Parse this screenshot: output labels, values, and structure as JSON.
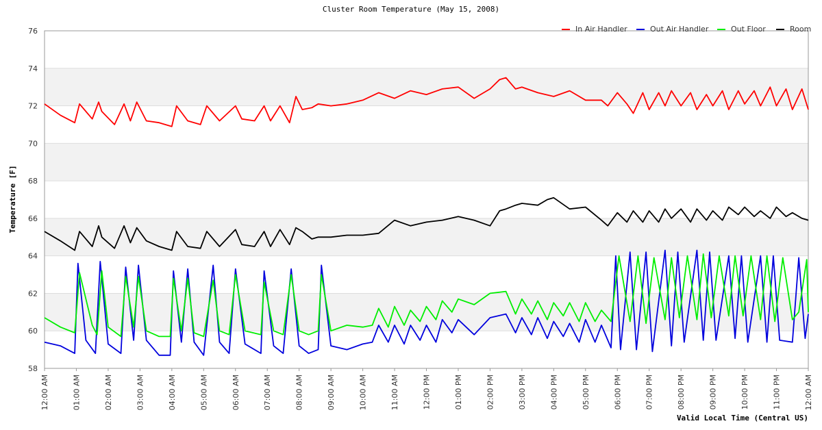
{
  "chart_data": {
    "type": "line",
    "title": "Cluster Room Temperature (May 15, 2008)",
    "xlabel": "Valid Local Time (Central US)",
    "ylabel": "Temperature [F]",
    "ylim": [
      58,
      76
    ],
    "yticks": [
      "58",
      "60",
      "62",
      "64",
      "66",
      "68",
      "70",
      "72",
      "74",
      "76"
    ],
    "xlim": [
      0,
      24
    ],
    "xticks": [
      "12:00 AM",
      "01:00 AM",
      "02:00 AM",
      "03:00 AM",
      "04:00 AM",
      "05:00 AM",
      "06:00 AM",
      "07:00 AM",
      "08:00 AM",
      "09:00 AM",
      "10:00 AM",
      "11:00 AM",
      "12:00 PM",
      "01:00 PM",
      "02:00 PM",
      "03:00 PM",
      "04:00 PM",
      "05:00 PM",
      "06:00 PM",
      "07:00 PM",
      "08:00 PM",
      "09:00 PM",
      "10:00 PM",
      "11:00 PM",
      "12:00 AM"
    ],
    "grid": "alternating horizontal bands",
    "legend_position": "top-right",
    "series": [
      {
        "name": "In Air Handler",
        "color": "#ff0000",
        "x": [
          0,
          0.5,
          0.95,
          1.1,
          1.5,
          1.7,
          1.8,
          2.2,
          2.5,
          2.7,
          2.9,
          3.2,
          3.6,
          4.0,
          4.15,
          4.5,
          4.9,
          5.1,
          5.5,
          6.0,
          6.2,
          6.6,
          6.9,
          7.1,
          7.4,
          7.7,
          7.9,
          8.1,
          8.4,
          8.6,
          9.0,
          9.5,
          10.0,
          10.5,
          11.0,
          11.5,
          12.0,
          12.5,
          13.0,
          13.5,
          14.0,
          14.3,
          14.5,
          14.8,
          15.0,
          15.5,
          16.0,
          16.5,
          17.0,
          17.5,
          17.7,
          18.0,
          18.3,
          18.5,
          18.8,
          19.0,
          19.3,
          19.5,
          19.7,
          20.0,
          20.3,
          20.5,
          20.8,
          21.0,
          21.3,
          21.5,
          21.8,
          22.0,
          22.3,
          22.5,
          22.8,
          23.0,
          23.3,
          23.5,
          23.8,
          24.0
        ],
        "y": [
          72.1,
          71.5,
          71.1,
          72.1,
          71.3,
          72.2,
          71.7,
          71.0,
          72.1,
          71.2,
          72.2,
          71.2,
          71.1,
          70.9,
          72.0,
          71.2,
          71.0,
          72.0,
          71.2,
          72.0,
          71.3,
          71.2,
          72.0,
          71.2,
          72.0,
          71.1,
          72.5,
          71.8,
          71.9,
          72.1,
          72.0,
          72.1,
          72.3,
          72.7,
          72.4,
          72.8,
          72.6,
          72.9,
          73.0,
          72.4,
          72.9,
          73.4,
          73.5,
          72.9,
          73.0,
          72.7,
          72.5,
          72.8,
          72.3,
          72.3,
          72.0,
          72.7,
          72.1,
          71.6,
          72.7,
          71.8,
          72.7,
          72.0,
          72.8,
          72.0,
          72.7,
          71.8,
          72.6,
          72.0,
          72.8,
          71.8,
          72.8,
          72.1,
          72.8,
          72.0,
          73.0,
          72.0,
          72.9,
          71.8,
          72.9,
          71.8
        ]
      },
      {
        "name": "Out Air Handler",
        "color": "#0000dd",
        "x": [
          0,
          0.5,
          0.95,
          1.05,
          1.3,
          1.6,
          1.75,
          2.0,
          2.4,
          2.55,
          2.8,
          2.95,
          3.2,
          3.6,
          3.95,
          4.05,
          4.3,
          4.5,
          4.7,
          5.0,
          5.3,
          5.5,
          5.8,
          6.0,
          6.3,
          6.8,
          6.9,
          7.2,
          7.5,
          7.75,
          8.0,
          8.3,
          8.6,
          8.7,
          9.0,
          9.5,
          10.0,
          10.3,
          10.5,
          10.8,
          11.0,
          11.3,
          11.5,
          11.8,
          12.0,
          12.3,
          12.5,
          12.8,
          13.0,
          13.5,
          14.0,
          14.5,
          14.8,
          15.0,
          15.3,
          15.5,
          15.8,
          16.0,
          16.3,
          16.5,
          16.8,
          17.0,
          17.3,
          17.5,
          17.8,
          17.95,
          18.1,
          18.4,
          18.6,
          18.9,
          19.1,
          19.5,
          19.7,
          19.9,
          20.1,
          20.5,
          20.7,
          20.9,
          21.1,
          21.5,
          21.7,
          21.9,
          22.1,
          22.5,
          22.7,
          22.9,
          23.1,
          23.5,
          23.7,
          23.9,
          24.0
        ],
        "y": [
          59.4,
          59.2,
          58.8,
          63.6,
          59.5,
          58.8,
          63.7,
          59.3,
          58.8,
          63.4,
          59.5,
          63.5,
          59.5,
          58.7,
          58.7,
          63.2,
          59.4,
          63.3,
          59.4,
          58.7,
          63.5,
          59.4,
          58.8,
          63.3,
          59.3,
          58.8,
          63.2,
          59.2,
          58.8,
          63.3,
          59.2,
          58.8,
          59.0,
          63.5,
          59.2,
          59.0,
          59.3,
          59.4,
          60.3,
          59.4,
          60.3,
          59.3,
          60.3,
          59.5,
          60.3,
          59.4,
          60.6,
          59.9,
          60.6,
          59.8,
          60.7,
          60.9,
          59.9,
          60.7,
          59.8,
          60.7,
          59.6,
          60.5,
          59.7,
          60.4,
          59.4,
          60.6,
          59.4,
          60.3,
          59.1,
          64.0,
          59.0,
          64.2,
          59.0,
          64.2,
          58.9,
          64.3,
          59.2,
          64.2,
          59.4,
          64.3,
          59.5,
          64.2,
          59.5,
          64.0,
          59.6,
          64.0,
          59.4,
          64.0,
          59.4,
          64.0,
          59.5,
          59.4,
          63.9,
          59.6,
          60.9
        ]
      },
      {
        "name": "Out Floor",
        "color": "#00ee00",
        "x": [
          0,
          0.5,
          0.95,
          1.1,
          1.5,
          1.65,
          1.8,
          2.0,
          2.4,
          2.55,
          2.8,
          2.95,
          3.2,
          3.6,
          3.95,
          4.05,
          4.3,
          4.5,
          4.7,
          5.0,
          5.3,
          5.5,
          5.8,
          6.0,
          6.3,
          6.8,
          6.9,
          7.2,
          7.5,
          7.75,
          8.0,
          8.3,
          8.6,
          8.7,
          9.0,
          9.5,
          10.0,
          10.3,
          10.5,
          10.8,
          11.0,
          11.3,
          11.5,
          11.8,
          12.0,
          12.3,
          12.5,
          12.8,
          13.0,
          13.5,
          14.0,
          14.5,
          14.8,
          15.0,
          15.3,
          15.5,
          15.8,
          16.0,
          16.3,
          16.5,
          16.8,
          17.0,
          17.3,
          17.5,
          17.8,
          18.05,
          18.4,
          18.65,
          18.9,
          19.15,
          19.5,
          19.7,
          19.95,
          20.2,
          20.5,
          20.7,
          20.95,
          21.2,
          21.5,
          21.7,
          21.95,
          22.2,
          22.5,
          22.7,
          22.95,
          23.2,
          23.5,
          23.7,
          23.95,
          24.0
        ],
        "y": [
          60.7,
          60.2,
          59.9,
          63.1,
          60.3,
          59.8,
          63.2,
          60.2,
          59.7,
          62.9,
          60.2,
          62.9,
          60.0,
          59.7,
          59.7,
          62.8,
          60.0,
          62.8,
          59.9,
          59.7,
          62.7,
          60.0,
          59.8,
          63.0,
          60.0,
          59.8,
          62.6,
          60.0,
          59.8,
          63.0,
          60.0,
          59.8,
          60.0,
          63.0,
          60.0,
          60.3,
          60.2,
          60.3,
          61.2,
          60.2,
          61.3,
          60.3,
          61.1,
          60.5,
          61.3,
          60.6,
          61.6,
          61.0,
          61.7,
          61.4,
          62.0,
          62.1,
          60.9,
          61.7,
          60.9,
          61.6,
          60.6,
          61.5,
          60.8,
          61.5,
          60.5,
          61.5,
          60.5,
          61.1,
          60.5,
          64.0,
          60.5,
          64.0,
          60.4,
          63.9,
          60.6,
          63.9,
          60.7,
          64.0,
          60.6,
          64.1,
          60.7,
          64.0,
          60.8,
          64.0,
          60.8,
          64.0,
          60.6,
          64.0,
          60.5,
          63.9,
          60.6,
          61.0,
          63.8,
          61.0
        ]
      },
      {
        "name": "Room",
        "color": "#000000",
        "x": [
          0,
          0.5,
          0.95,
          1.1,
          1.5,
          1.7,
          1.8,
          2.2,
          2.5,
          2.7,
          2.9,
          3.2,
          3.6,
          4.0,
          4.15,
          4.5,
          4.9,
          5.1,
          5.5,
          6.0,
          6.2,
          6.6,
          6.9,
          7.1,
          7.4,
          7.7,
          7.9,
          8.1,
          8.4,
          8.6,
          9.0,
          9.5,
          10.0,
          10.5,
          11.0,
          11.5,
          12.0,
          12.5,
          13.0,
          13.5,
          14.0,
          14.3,
          14.5,
          14.8,
          15.0,
          15.5,
          15.8,
          16.0,
          16.5,
          17.0,
          17.5,
          17.7,
          18.0,
          18.3,
          18.5,
          18.8,
          19.0,
          19.3,
          19.5,
          19.7,
          20.0,
          20.3,
          20.5,
          20.8,
          21.0,
          21.3,
          21.5,
          21.8,
          22.0,
          22.3,
          22.5,
          22.8,
          23.0,
          23.3,
          23.5,
          23.8,
          24.0
        ],
        "y": [
          65.3,
          64.8,
          64.3,
          65.3,
          64.5,
          65.6,
          65.0,
          64.4,
          65.6,
          64.7,
          65.5,
          64.8,
          64.5,
          64.3,
          65.3,
          64.5,
          64.4,
          65.3,
          64.5,
          65.4,
          64.6,
          64.5,
          65.3,
          64.5,
          65.4,
          64.6,
          65.5,
          65.3,
          64.9,
          65.0,
          65.0,
          65.1,
          65.1,
          65.2,
          65.9,
          65.6,
          65.8,
          65.9,
          66.1,
          65.9,
          65.6,
          66.4,
          66.5,
          66.7,
          66.8,
          66.7,
          67.0,
          67.1,
          66.5,
          66.6,
          65.9,
          65.6,
          66.3,
          65.8,
          66.4,
          65.8,
          66.4,
          65.8,
          66.5,
          66.0,
          66.5,
          65.8,
          66.5,
          65.9,
          66.4,
          65.9,
          66.6,
          66.2,
          66.6,
          66.1,
          66.4,
          66.0,
          66.6,
          66.1,
          66.3,
          66.0,
          65.9
        ]
      }
    ]
  }
}
